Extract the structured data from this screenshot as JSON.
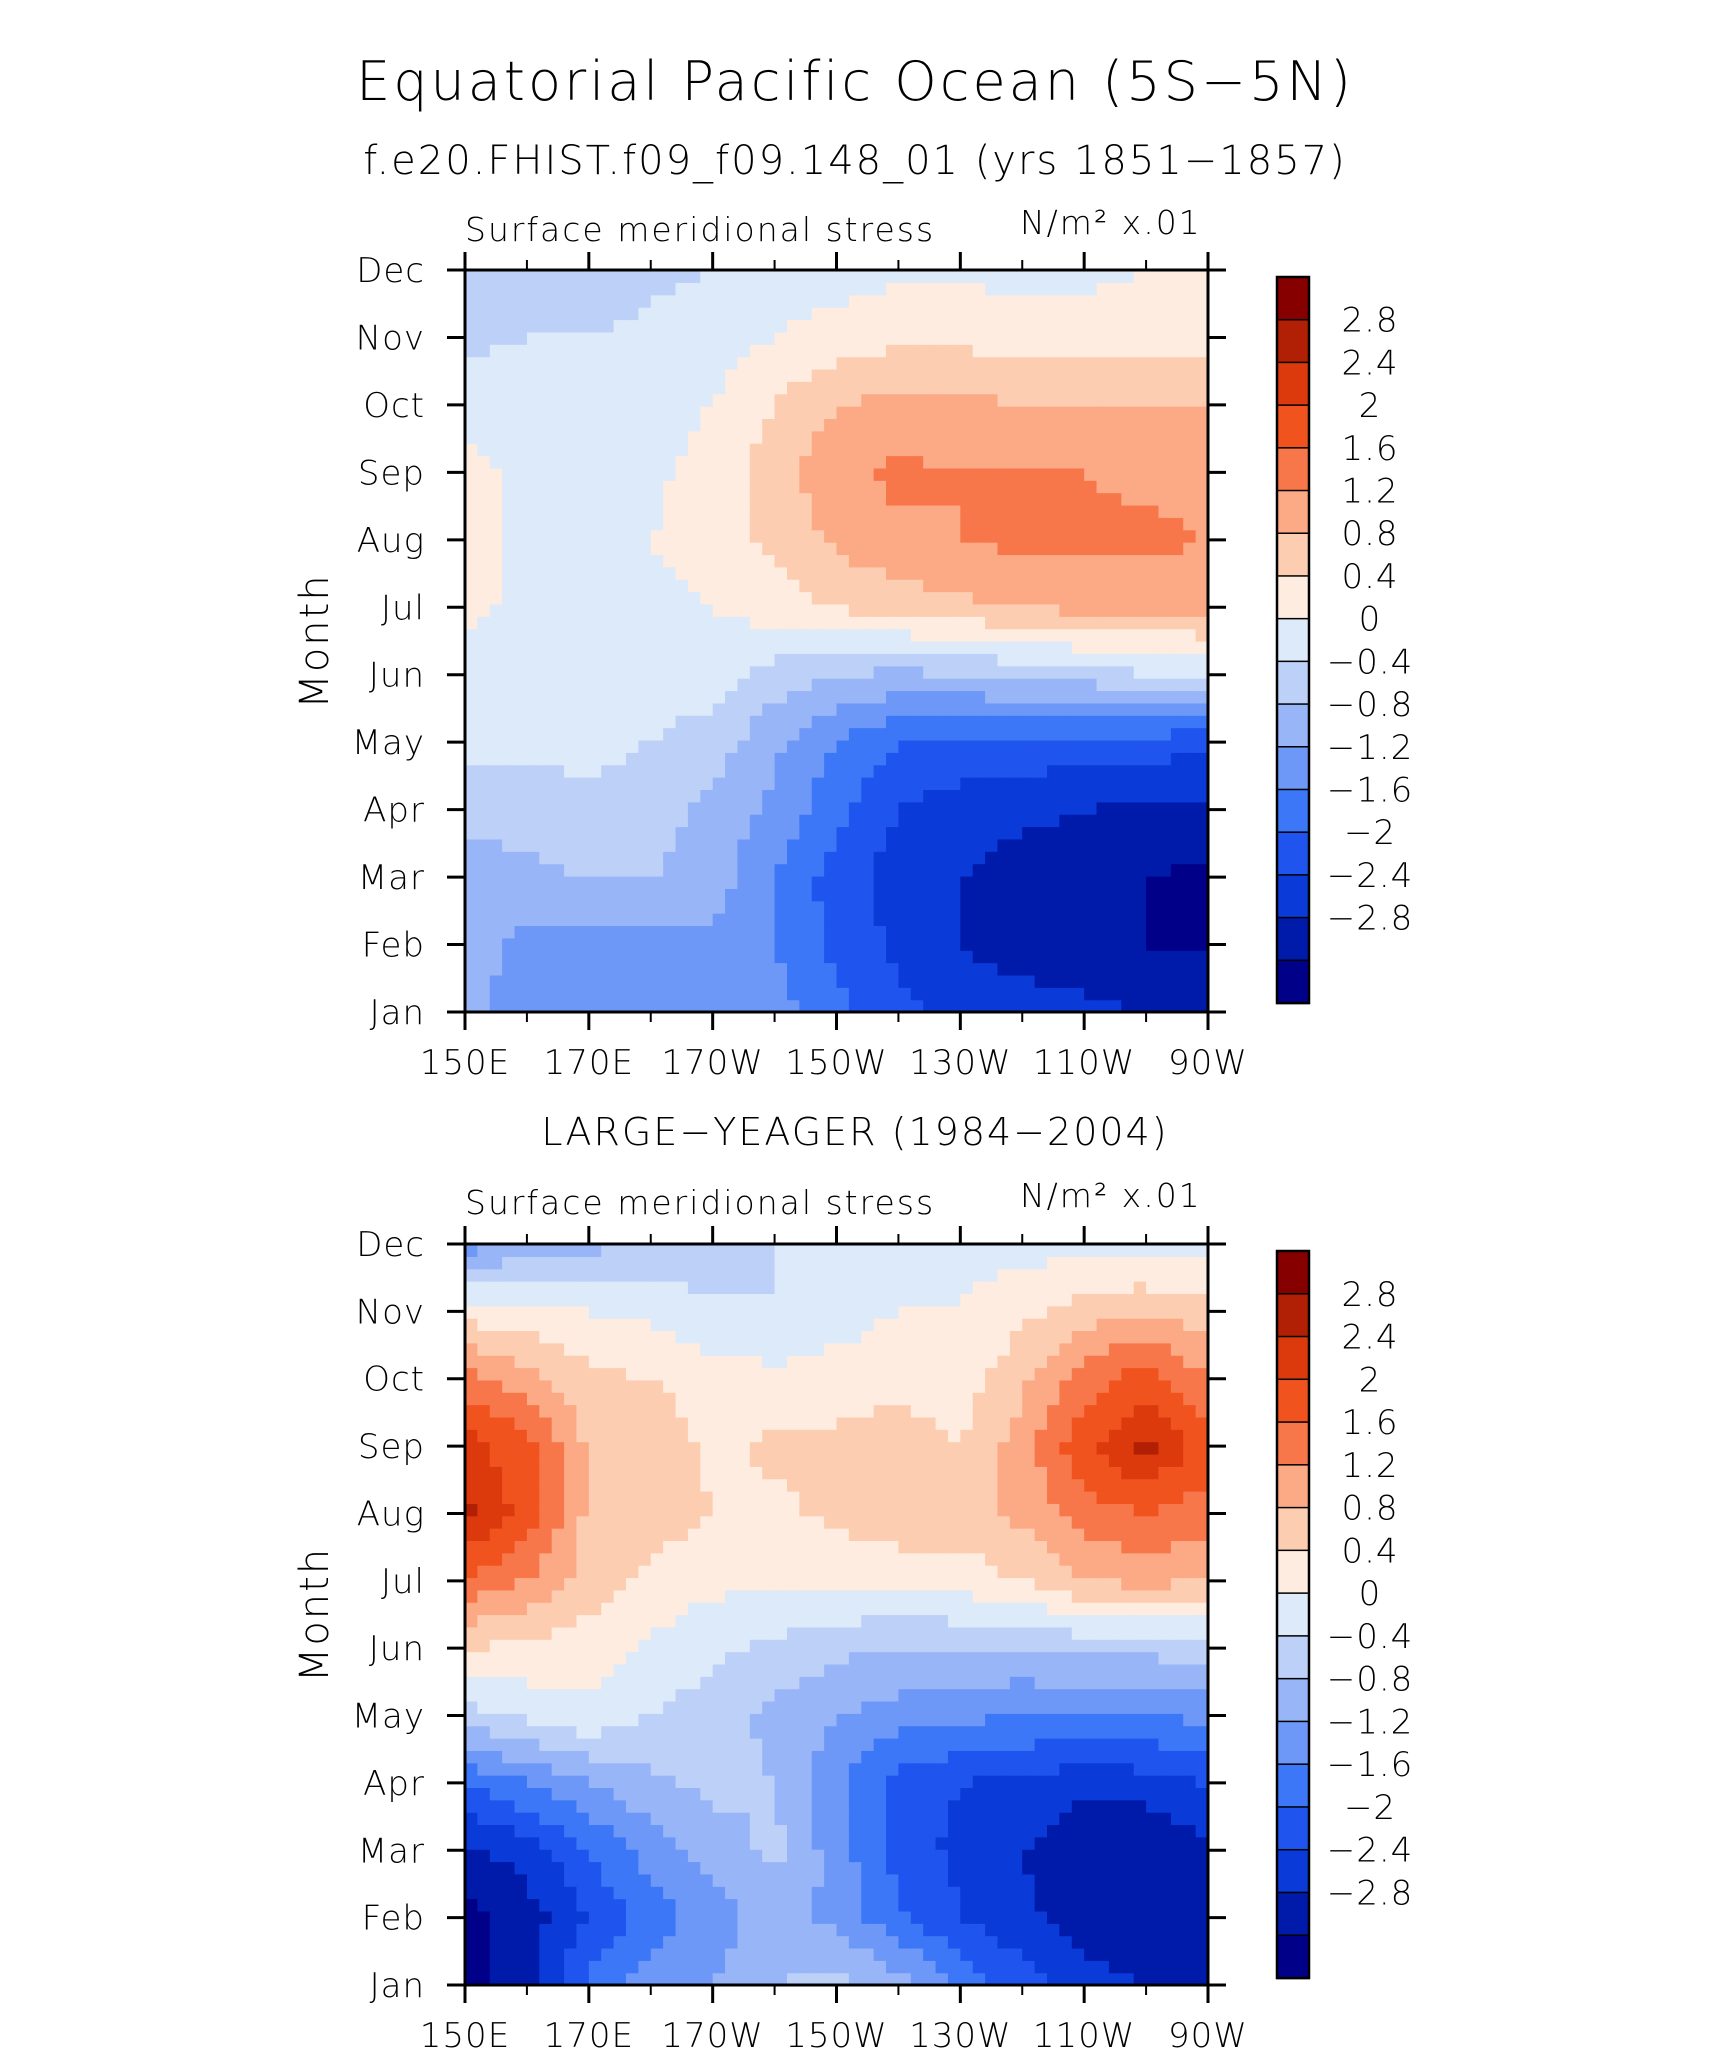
{
  "title": "Equatorial Pacific Ocean (5S−5N)",
  "subtitle": "f.e20.FHIST.f09_f09.148_01 (yrs 1851−1857)",
  "chart_data": [
    {
      "type": "heatmap",
      "panel_title": "",
      "variable_label": "Surface meridional stress",
      "units_label": "N/m² x.01",
      "ylabel": "Month",
      "xlabel": "",
      "x_ticks": [
        "150E",
        "170E",
        "170W",
        "150W",
        "130W",
        "110W",
        "90W"
      ],
      "x_values": [
        150,
        160,
        170,
        180,
        190,
        200,
        210,
        220,
        230,
        240,
        250,
        260,
        270
      ],
      "y_ticks": [
        "Jan",
        "Feb",
        "Mar",
        "Apr",
        "May",
        "Jun",
        "Jul",
        "Aug",
        "Sep",
        "Oct",
        "Nov",
        "Dec"
      ],
      "legend_levels": [
        "2.8",
        "2.4",
        "2",
        "1.6",
        "1.2",
        "0.8",
        "0.4",
        "0",
        "−0.4",
        "−0.8",
        "−1.2",
        "−1.6",
        "−2",
        "−2.4",
        "−2.8"
      ],
      "values": [
        [
          -0.7,
          -1.0,
          -1.1,
          -1.0,
          -0.9,
          -1.0,
          -1.5,
          -1.9,
          -2.1,
          -2.2,
          -2.3,
          -2.4,
          -2.5
        ],
        [
          -0.6,
          -0.9,
          -1.0,
          -1.0,
          -0.9,
          -1.2,
          -1.7,
          -2.1,
          -2.4,
          -2.6,
          -2.7,
          -2.8,
          -2.8
        ],
        [
          -0.6,
          -0.5,
          -0.4,
          -0.4,
          -0.6,
          -1.2,
          -1.8,
          -2.2,
          -2.4,
          -2.6,
          -2.7,
          -2.8,
          -2.9
        ],
        [
          -0.3,
          -0.2,
          -0.1,
          -0.2,
          -0.5,
          -0.9,
          -1.5,
          -2.0,
          -2.2,
          -2.3,
          -2.4,
          -2.5,
          -2.5
        ],
        [
          0.1,
          0.1,
          0.1,
          0.0,
          -0.2,
          -0.7,
          -1.2,
          -1.6,
          -1.7,
          -1.7,
          -1.8,
          -1.8,
          -1.9
        ],
        [
          0.2,
          0.2,
          0.2,
          0.2,
          0.2,
          -0.2,
          -0.4,
          -0.5,
          -0.4,
          -0.3,
          -0.2,
          0.0,
          0.1
        ],
        [
          0.5,
          0.3,
          0.3,
          0.3,
          0.4,
          0.6,
          0.8,
          1.0,
          1.1,
          1.2,
          1.3,
          1.3,
          1.3
        ],
        [
          0.5,
          0.3,
          0.3,
          0.4,
          0.6,
          0.9,
          1.3,
          1.5,
          1.6,
          1.7,
          1.7,
          1.7,
          1.6
        ],
        [
          0.5,
          0.3,
          0.2,
          0.3,
          0.6,
          1.0,
          1.5,
          1.7,
          1.6,
          1.6,
          1.6,
          1.5,
          1.4
        ],
        [
          0.3,
          0.2,
          0.1,
          0.2,
          0.4,
          0.8,
          1.2,
          1.3,
          1.3,
          1.2,
          1.2,
          1.2,
          1.2
        ],
        [
          -0.1,
          0.0,
          0.0,
          0.1,
          0.2,
          0.4,
          0.6,
          0.7,
          0.7,
          0.6,
          0.6,
          0.6,
          0.7
        ],
        [
          -0.3,
          -0.2,
          -0.2,
          -0.1,
          0.0,
          0.2,
          0.2,
          0.3,
          0.3,
          0.3,
          0.3,
          0.4,
          0.4
        ]
      ]
    },
    {
      "type": "heatmap",
      "panel_title": "LARGE−YEAGER (1984−2004)",
      "variable_label": "Surface meridional stress",
      "units_label": "N/m² x.01",
      "ylabel": "Month",
      "xlabel": "",
      "x_ticks": [
        "150E",
        "170E",
        "170W",
        "150W",
        "130W",
        "110W",
        "90W"
      ],
      "x_values": [
        150,
        160,
        170,
        180,
        190,
        200,
        210,
        220,
        230,
        240,
        250,
        260,
        270
      ],
      "y_ticks": [
        "Jan",
        "Feb",
        "Mar",
        "Apr",
        "May",
        "Jun",
        "Jul",
        "Aug",
        "Sep",
        "Oct",
        "Nov",
        "Dec"
      ],
      "legend_levels": [
        "2.8",
        "2.4",
        "2",
        "1.6",
        "1.2",
        "0.8",
        "0.4",
        "0",
        "−0.4",
        "−0.8",
        "−1.2",
        "−1.6",
        "−2",
        "−2.4",
        "−2.8"
      ],
      "values": [
        [
          -3.0,
          -2.5,
          -1.5,
          -1.0,
          -0.8,
          -0.4,
          -0.3,
          -0.6,
          -1.3,
          -1.8,
          -2.2,
          -2.4,
          -2.5
        ],
        [
          -3.0,
          -2.6,
          -2.0,
          -1.4,
          -1.0,
          -0.6,
          -0.9,
          -1.5,
          -2.0,
          -2.3,
          -2.6,
          -2.8,
          -2.7
        ],
        [
          -2.5,
          -2.2,
          -1.6,
          -1.0,
          -0.6,
          -0.3,
          -1.0,
          -1.8,
          -2.1,
          -2.4,
          -2.7,
          -2.8,
          -2.5
        ],
        [
          -1.6,
          -1.2,
          -0.8,
          -0.5,
          -0.3,
          -0.4,
          -1.1,
          -1.8,
          -2.0,
          -2.1,
          -2.3,
          -2.2,
          -2.0
        ],
        [
          -0.2,
          0.1,
          0.3,
          0.0,
          -0.2,
          -0.5,
          -0.8,
          -1.0,
          -1.1,
          -1.2,
          -1.2,
          -1.2,
          -1.1
        ],
        [
          0.8,
          0.7,
          0.6,
          0.3,
          0.1,
          -0.1,
          -0.3,
          -0.4,
          -0.4,
          -0.4,
          -0.3,
          -0.3,
          -0.2
        ],
        [
          1.9,
          1.6,
          1.0,
          0.7,
          0.5,
          0.5,
          0.5,
          0.5,
          0.6,
          0.8,
          1.2,
          1.3,
          1.2
        ],
        [
          2.9,
          2.2,
          1.1,
          1.0,
          0.8,
          0.7,
          0.9,
          1.1,
          1.0,
          1.3,
          1.8,
          2.0,
          1.8
        ],
        [
          2.6,
          2.1,
          1.1,
          1.1,
          0.7,
          0.9,
          0.9,
          1.0,
          0.8,
          1.4,
          2.3,
          2.9,
          2.2
        ],
        [
          1.8,
          1.4,
          0.9,
          0.8,
          0.6,
          0.5,
          0.6,
          0.7,
          0.6,
          1.1,
          1.8,
          2.2,
          1.6
        ],
        [
          0.6,
          0.5,
          0.4,
          0.3,
          0.1,
          0.0,
          0.2,
          0.4,
          0.4,
          0.7,
          1.0,
          1.2,
          1.0
        ],
        [
          -1.0,
          -0.6,
          -0.5,
          -0.4,
          -0.3,
          0.0,
          0.2,
          0.3,
          0.3,
          0.2,
          0.3,
          0.1,
          0.2
        ]
      ]
    }
  ],
  "colors": {
    "levels": [
      "#000088",
      "#001aaa",
      "#0a3ad8",
      "#1f55ee",
      "#3c77f7",
      "#6d98f7",
      "#98b6f7",
      "#bdd0f8",
      "#dceafa",
      "#fdecdf",
      "#fdcdb1",
      "#fca985",
      "#f7774a",
      "#f1531f",
      "#dc3a0d",
      "#b11f05",
      "#860000"
    ],
    "thresholds": [
      -2.8,
      -2.4,
      -2.0,
      -1.6,
      -1.2,
      -0.8,
      -0.4,
      0.0,
      0.4,
      0.8,
      1.2,
      1.6,
      2.0,
      2.4,
      2.8
    ]
  }
}
